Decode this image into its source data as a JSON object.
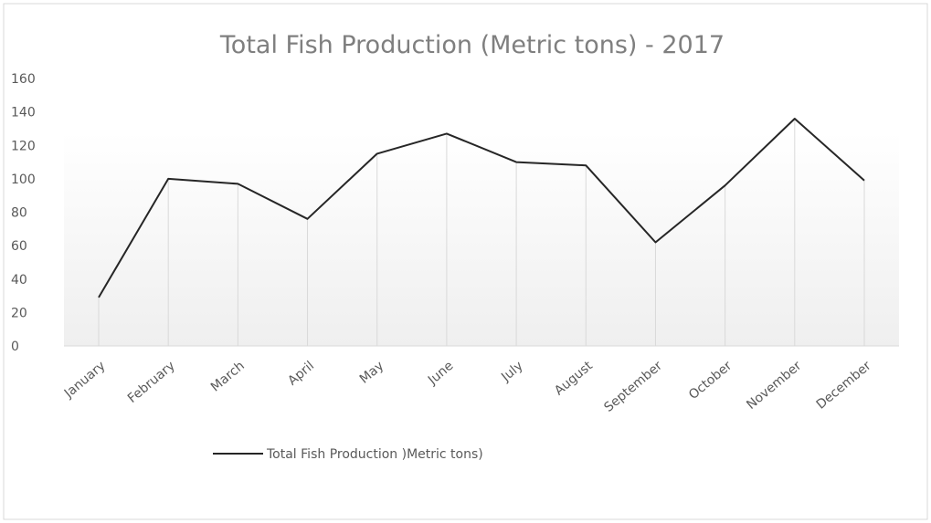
{
  "chart_data": {
    "type": "line",
    "title": "Total Fish Production (Metric tons) - 2017",
    "xlabel": "",
    "ylabel": "",
    "categories": [
      "January",
      "February",
      "March",
      "April",
      "May",
      "June",
      "July",
      "August",
      "September",
      "October",
      "November",
      "December"
    ],
    "series": [
      {
        "name": "Total Fish Production )Metric tons)",
        "values": [
          29,
          100,
          97,
          76,
          115,
          127,
          110,
          108,
          62,
          96,
          136,
          99
        ],
        "color": "#262626"
      }
    ],
    "ylim": [
      0,
      160
    ],
    "yticks": [
      0,
      20,
      40,
      60,
      80,
      100,
      120,
      140,
      160
    ],
    "drop_lines": true,
    "legend_position": "bottom"
  }
}
